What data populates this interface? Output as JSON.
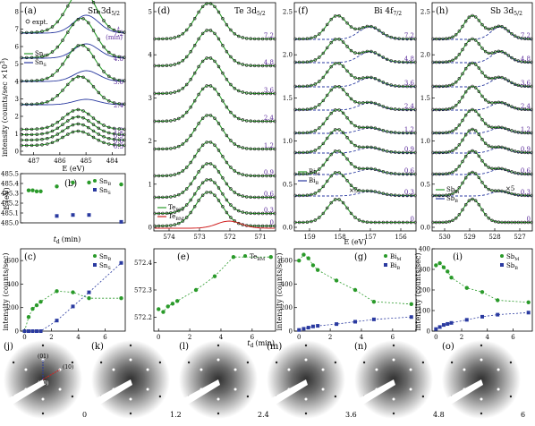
{
  "figure": {
    "shared_labels": {
      "intensity_left": "intensity (counts/sec ×10",
      "intensity_left_exp": "3",
      "intensity_bottom": "intensity (counts/sec)",
      "energy_axis": "E (eV)",
      "energy_axis_b": "E (eV)",
      "td": "t",
      "td_sub": "d",
      "td_unit": "(min)"
    },
    "panel_labels": [
      "(a)",
      "(b)",
      "(c)",
      "(d)",
      "(e)",
      "(f)",
      "(g)",
      "(h)",
      "(i)",
      "(j)",
      "(k)",
      "(l)",
      "(m)",
      "(n)",
      "(o)"
    ],
    "panel_a": {
      "title": "Sn 3d",
      "title_sub": "5/2",
      "legend": [
        "expt.",
        "Sn",
        "Sn"
      ],
      "legend_subs": [
        "",
        "B",
        "S"
      ],
      "time_labels": [
        "7.2",
        "4.8",
        "3.6",
        "2.4",
        "1.2",
        "0.9",
        "0.6",
        "0.3"
      ],
      "xticks": [
        "487",
        "486",
        "485",
        "484"
      ],
      "yticks": [
        "0",
        "1",
        "2",
        "3",
        "4",
        "5",
        "6",
        "7",
        "8"
      ]
    },
    "panel_d": {
      "title": "Te 3d",
      "title_sub": "5/2",
      "time_labels": [
        "7.2",
        "4.8",
        "3.6",
        "2.4",
        "1.2",
        "0.9",
        "0.6",
        "0.3",
        "0"
      ],
      "legend": [
        "Te",
        "Te"
      ],
      "legend_subs": [
        "BM",
        "BM'"
      ],
      "xticks": [
        "574",
        "573",
        "572",
        "571"
      ],
      "yticks": [
        "0",
        "1",
        "2",
        "3",
        "4",
        "5"
      ]
    },
    "panel_f": {
      "title": "Bi 4f",
      "title_sub": "7/2",
      "time_labels": [
        "7.2",
        "4.8",
        "3.6",
        "2.4",
        "1.2",
        "0.9",
        "0.6",
        "0.3",
        "0"
      ],
      "legend": [
        "Bi",
        "Bi"
      ],
      "legend_subs": [
        "M",
        "B"
      ],
      "scale": "×5",
      "xticks": [
        "159",
        "158",
        "157",
        "156"
      ],
      "yticks": [
        "0.0",
        "0.5",
        "1.0",
        "1.5",
        "2.0",
        "2.5"
      ]
    },
    "panel_h": {
      "title": "Sb 3d",
      "title_sub": "5/2",
      "time_labels": [
        "7.2",
        "4.8",
        "3.6",
        "2.4",
        "1.2",
        "0.9",
        "0.6",
        "0.3",
        "0"
      ],
      "legend": [
        "Sb",
        "Sb"
      ],
      "legend_subs": [
        "M",
        "B"
      ],
      "scale": "×5",
      "xticks": [
        "530",
        "529",
        "528",
        "527"
      ],
      "yticks": [
        "0.0",
        "0.5",
        "1.0",
        "1.5",
        "2.0",
        "2.5"
      ]
    },
    "leed": {
      "labels": [
        "0",
        "1.2",
        "2.4",
        "3.6",
        "4.8",
        "6"
      ],
      "spots": [
        "(01)",
        "(10)",
        "(00)"
      ]
    }
  },
  "chart_data": [
    {
      "panel": "b",
      "type": "scatter",
      "ylabel": "E (eV)",
      "xlabel": "t_d (min)",
      "ylim": [
        485.0,
        485.5
      ],
      "xlim": [
        -0.3,
        7.5
      ],
      "yticks": [
        "485.0",
        "485.1",
        "485.2",
        "485.3",
        "485.4",
        "485.5"
      ],
      "series": [
        {
          "name": "Sn_B",
          "x": [
            0.3,
            0.6,
            0.9,
            1.2,
            2.4,
            3.6,
            4.8,
            7.2
          ],
          "y": [
            485.33,
            485.33,
            485.32,
            485.32,
            485.37,
            485.41,
            485.41,
            485.39
          ]
        },
        {
          "name": "Sn_S",
          "x": [
            2.4,
            3.6,
            4.8,
            7.2
          ],
          "y": [
            485.07,
            485.08,
            485.08,
            485.01
          ]
        }
      ]
    },
    {
      "panel": "c",
      "type": "line",
      "ylabel": "intensity (counts/sec)",
      "xlabel": "t_d (min)",
      "ylim": [
        0,
        700
      ],
      "xlim": [
        -0.3,
        7.5
      ],
      "yticks": [
        "0",
        "200",
        "400",
        "600"
      ],
      "xticks": [
        "0",
        "2",
        "4",
        "6"
      ],
      "series": [
        {
          "name": "Sn_B",
          "x": [
            0,
            0.3,
            0.6,
            0.9,
            1.2,
            2.4,
            3.6,
            4.8,
            7.2
          ],
          "y": [
            0,
            120,
            190,
            220,
            250,
            340,
            330,
            280,
            280
          ]
        },
        {
          "name": "Sn_S",
          "x": [
            0,
            0.3,
            0.6,
            0.9,
            1.2,
            2.4,
            3.6,
            4.8,
            7.2
          ],
          "y": [
            0,
            0,
            0,
            0,
            0,
            90,
            210,
            330,
            580
          ]
        }
      ]
    },
    {
      "panel": "e",
      "type": "line",
      "ylabel": "E (eV)",
      "xlabel": "t_d (min)",
      "ylim": [
        572.15,
        572.45
      ],
      "xlim": [
        -0.3,
        7.5
      ],
      "yticks": [
        "572.2",
        "572.3",
        "572.4"
      ],
      "xticks": [
        "0",
        "2",
        "4",
        "6"
      ],
      "series": [
        {
          "name": "Te_BM",
          "x": [
            0,
            0.3,
            0.6,
            0.9,
            1.2,
            2.4,
            3.6,
            4.8,
            7.2
          ],
          "y": [
            572.23,
            572.22,
            572.24,
            572.25,
            572.26,
            572.3,
            572.35,
            572.42,
            572.42
          ]
        }
      ]
    },
    {
      "panel": "g",
      "type": "line",
      "ylabel": "intensity (counts/sec)",
      "xlabel": "t_d (min)",
      "ylim": [
        0,
        700
      ],
      "xlim": [
        -0.3,
        7.5
      ],
      "yticks": [
        "0",
        "200",
        "400",
        "600"
      ],
      "xticks": [
        "0",
        "2",
        "4",
        "6"
      ],
      "series": [
        {
          "name": "Bi_M",
          "x": [
            0,
            0.3,
            0.6,
            0.9,
            1.2,
            2.4,
            3.6,
            4.8,
            7.2
          ],
          "y": [
            600,
            650,
            620,
            560,
            520,
            430,
            350,
            250,
            230
          ]
        },
        {
          "name": "Bi_B",
          "x": [
            0,
            0.3,
            0.6,
            0.9,
            1.2,
            2.4,
            3.6,
            4.8,
            7.2
          ],
          "y": [
            10,
            20,
            30,
            40,
            45,
            60,
            80,
            100,
            120
          ]
        }
      ]
    },
    {
      "panel": "i",
      "type": "line",
      "ylabel": "intensity (counts/sec)",
      "xlabel": "t_d (min)",
      "ylim": [
        0,
        400
      ],
      "xlim": [
        -0.3,
        7.5
      ],
      "yticks": [
        "0",
        "100",
        "200",
        "300",
        "400"
      ],
      "xticks": [
        "0",
        "2",
        "4",
        "6"
      ],
      "series": [
        {
          "name": "Sb_M",
          "x": [
            0,
            0.3,
            0.6,
            0.9,
            1.2,
            2.4,
            3.6,
            4.8,
            7.2
          ],
          "y": [
            320,
            330,
            310,
            290,
            260,
            210,
            190,
            150,
            140
          ]
        },
        {
          "name": "Sb_B",
          "x": [
            0,
            0.3,
            0.6,
            0.9,
            1.2,
            2.4,
            3.6,
            4.8,
            7.2
          ],
          "y": [
            10,
            20,
            30,
            35,
            40,
            55,
            70,
            80,
            90
          ]
        }
      ]
    }
  ]
}
